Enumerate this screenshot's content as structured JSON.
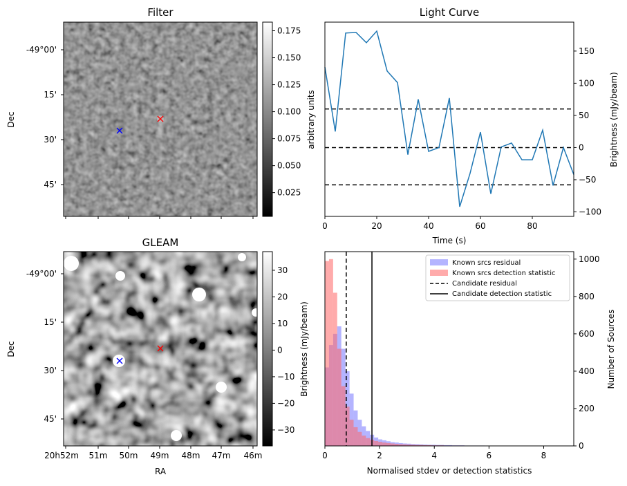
{
  "chart_data": [
    {
      "type": "heatmap",
      "title": "Filter",
      "xlabel": "",
      "ylabel": "Dec",
      "y_ticks": [
        "-49°00'",
        "15'",
        "30'",
        "45'"
      ],
      "colormap": "gray",
      "colorbar": {
        "label": "",
        "range": [
          0.003,
          0.183
        ],
        "ticks": [
          "0.025",
          "0.050",
          "0.075",
          "0.100",
          "0.125",
          "0.150",
          "0.175"
        ]
      },
      "markers": [
        {
          "symbol": "x",
          "color": "#ff0000",
          "ra": "20h49m",
          "dec": "-49°23'"
        },
        {
          "symbol": "x",
          "color": "#0000ff",
          "ra": "20h50m15s",
          "dec": "-49°28'"
        }
      ]
    },
    {
      "type": "line",
      "title": "Light Curve",
      "xlabel": "Time (s)",
      "ylabel": "arbitrary units",
      "y2label": "Brightness (mJy/beam)",
      "xlim": [
        0,
        96
      ],
      "ylim": [
        -107,
        195
      ],
      "x_ticks": [
        "0",
        "20",
        "40",
        "60",
        "80"
      ],
      "y2_ticks": [
        "−100",
        "−50",
        "0",
        "50",
        "100",
        "150"
      ],
      "series": [
        {
          "color": "#1f77b4",
          "x": [
            0,
            4,
            8,
            12,
            16,
            20,
            24,
            28,
            32,
            36,
            40,
            44,
            48,
            52,
            56,
            60,
            64,
            68,
            72,
            76,
            80,
            84,
            88,
            92,
            96
          ],
          "values": [
            125,
            25,
            178,
            179,
            163,
            181,
            119,
            101,
            -11,
            75,
            -6,
            0,
            77,
            -92,
            -40,
            24,
            -72,
            1,
            7,
            -19,
            -19,
            27,
            -59,
            0,
            -42
          ]
        }
      ],
      "hlines": [
        {
          "y": 60,
          "style": "dashed",
          "color": "#000000"
        },
        {
          "y": 0,
          "style": "dashed",
          "color": "#000000"
        },
        {
          "y": -58,
          "style": "dashed",
          "color": "#000000"
        }
      ]
    },
    {
      "type": "heatmap",
      "title": "GLEAM",
      "xlabel": "RA",
      "ylabel": "Dec",
      "x_ticks": [
        "20h52m",
        "51m",
        "50m",
        "49m",
        "48m",
        "47m",
        "46m"
      ],
      "y_ticks": [
        "-49°00'",
        "15'",
        "30'",
        "45'"
      ],
      "colormap": "gray",
      "colorbar": {
        "label": "Brightness (mJy/beam)",
        "range": [
          -36,
          37
        ],
        "ticks": [
          "−30",
          "−20",
          "−10",
          "0",
          "10",
          "20",
          "30"
        ]
      },
      "markers": [
        {
          "symbol": "x",
          "color": "#ff0000",
          "ra": "20h49m",
          "dec": "-49°23'"
        },
        {
          "symbol": "x",
          "color": "#0000ff",
          "ra": "20h50m15s",
          "dec": "-49°28'"
        }
      ]
    },
    {
      "type": "bar",
      "xlabel": "Normalised stdev or detection statistics",
      "ylabel": "Number of Sources",
      "xlim": [
        0,
        9.1
      ],
      "ylim": [
        0,
        1040
      ],
      "x_ticks": [
        "0",
        "2",
        "4",
        "6",
        "8"
      ],
      "y_ticks": [
        "0",
        "200",
        "400",
        "600",
        "800",
        "1000"
      ],
      "bin_width": 0.15,
      "series": [
        {
          "name": "Known srcs residual",
          "color": "#7777ff",
          "values": [
            420,
            540,
            600,
            640,
            520,
            400,
            280,
            190,
            140,
            105,
            80,
            60,
            45,
            35,
            30,
            25,
            20,
            18,
            15,
            13,
            12,
            10,
            9,
            8,
            7,
            6,
            6,
            5,
            5,
            4,
            4,
            3,
            3,
            3,
            2,
            2,
            2,
            2,
            2,
            1,
            1,
            1,
            1,
            1,
            1,
            1,
            1,
            1,
            1,
            1,
            1,
            1,
            1,
            1,
            1,
            1,
            1,
            1,
            0,
            0
          ]
        },
        {
          "name": "Known srcs detection statistic",
          "color": "#ff6666",
          "values": [
            990,
            1000,
            820,
            520,
            320,
            210,
            140,
            100,
            75,
            55,
            42,
            33,
            26,
            22,
            18,
            15,
            13,
            11,
            9,
            8,
            7,
            6,
            5,
            5,
            4,
            4,
            3,
            3,
            3,
            2,
            2,
            2,
            2,
            2,
            1,
            1,
            1,
            1,
            1,
            1,
            1,
            1,
            1,
            1,
            1,
            1,
            1,
            1,
            1,
            1,
            1,
            1,
            1,
            1,
            1,
            1,
            1,
            1,
            0,
            0
          ]
        }
      ],
      "vlines": [
        {
          "name": "Candidate residual",
          "x": 0.78,
          "style": "dashed",
          "color": "#000000"
        },
        {
          "name": "Candidate detection statistic",
          "x": 1.72,
          "style": "solid",
          "color": "#000000"
        }
      ],
      "legend_placement": "top-right"
    }
  ]
}
